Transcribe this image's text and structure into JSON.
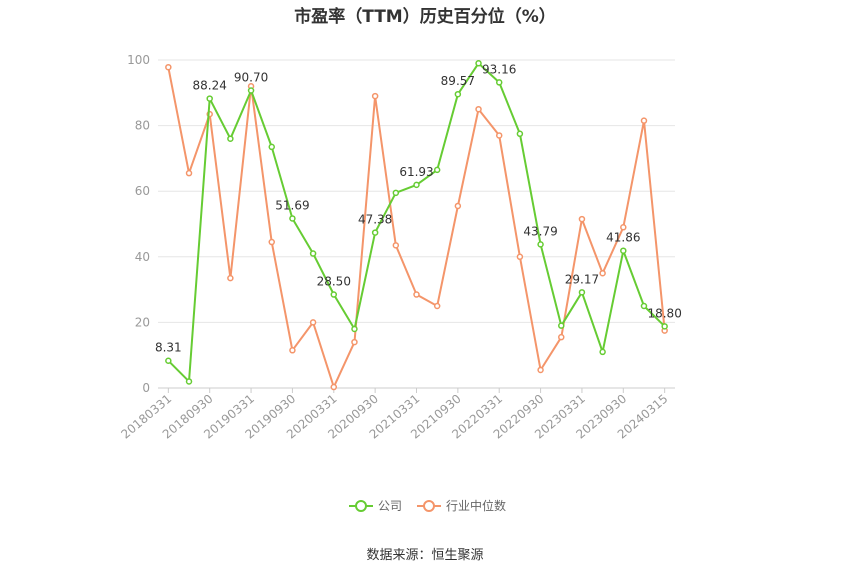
{
  "chart_data": {
    "type": "line",
    "title": "市盈率（TTM）历史百分位（%）",
    "source": "数据来源：恒生聚源",
    "ylim": [
      0,
      100
    ],
    "yticks": [
      0,
      20,
      40,
      60,
      80,
      100
    ],
    "grid": true,
    "legend_position": "bottom",
    "x": [
      "20180331",
      "20180630",
      "20180930",
      "20181231",
      "20190331",
      "20190630",
      "20190930",
      "20191231",
      "20200331",
      "20200630",
      "20200930",
      "20201231",
      "20210331",
      "20210630",
      "20210930",
      "20211231",
      "20220331",
      "20220630",
      "20220930",
      "20221231",
      "20230331",
      "20230630",
      "20230930",
      "20231231",
      "20240315"
    ],
    "xtick_labels": [
      "20180331",
      "20180930",
      "20190331",
      "20190930",
      "20200331",
      "20200930",
      "20210331",
      "20210930",
      "20220331",
      "20220930",
      "20230331",
      "20230930",
      "20240315"
    ],
    "series": [
      {
        "name": "公司",
        "color": "#66cc33",
        "values": [
          8.31,
          2.0,
          88.24,
          76.0,
          90.7,
          73.5,
          51.69,
          41.0,
          28.5,
          18.0,
          47.38,
          59.5,
          61.93,
          66.5,
          89.57,
          99.0,
          93.16,
          77.5,
          43.79,
          19.0,
          29.17,
          11.0,
          41.86,
          25.0,
          18.8
        ],
        "labels": [
          "8.31",
          "",
          "88.24",
          "",
          "90.70",
          "",
          "51.69",
          "",
          "28.50",
          "",
          "47.38",
          "",
          "61.93",
          "",
          "89.57",
          "",
          "93.16",
          "",
          "43.79",
          "",
          "29.17",
          "",
          "41.86",
          "",
          "18.80"
        ]
      },
      {
        "name": "行业中位数",
        "color": "#f4956a",
        "values": [
          97.8,
          65.5,
          83.5,
          33.5,
          92.0,
          44.5,
          11.5,
          20.0,
          0.3,
          14.0,
          89.0,
          43.5,
          28.5,
          25.0,
          55.5,
          85.0,
          77.0,
          40.0,
          5.5,
          15.5,
          51.5,
          35.0,
          49.0,
          81.5,
          17.5
        ]
      }
    ]
  }
}
